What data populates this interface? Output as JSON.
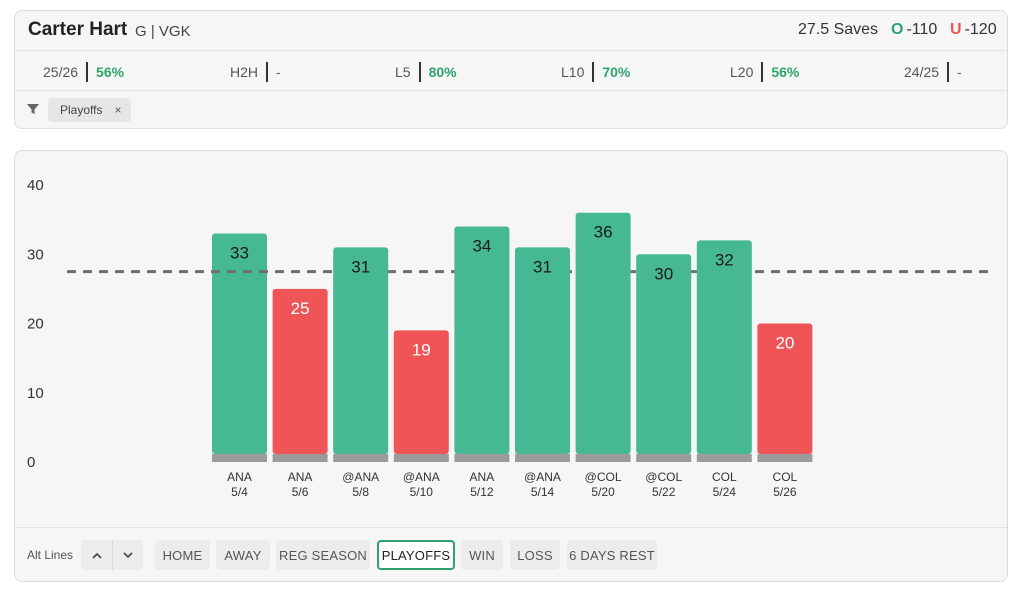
{
  "player": {
    "name": "Carter Hart",
    "meta": "G | VGK"
  },
  "prop": {
    "line_text": "27.5 Saves",
    "over_mark": "O",
    "over_odds": "-110",
    "under_mark": "U",
    "under_odds": "-120"
  },
  "splits": [
    {
      "label": "25/26",
      "value": "56%",
      "positive": true
    },
    {
      "label": "H2H",
      "value": "-",
      "positive": false
    },
    {
      "label": "L5",
      "value": "80%",
      "positive": true
    },
    {
      "label": "L10",
      "value": "70%",
      "positive": true
    },
    {
      "label": "L20",
      "value": "56%",
      "positive": true
    },
    {
      "label": "24/25",
      "value": "-",
      "positive": false
    }
  ],
  "filter_chip": {
    "label": "Playoffs",
    "close": "×"
  },
  "colors": {
    "over": "#46b994",
    "under": "#ef5456",
    "accent": "#2ea36e",
    "base": "#9b9b9b"
  },
  "chart_data": {
    "type": "bar",
    "categories": [
      "ANA 5/4",
      "ANA 5/6",
      "@ANA 5/8",
      "@ANA 5/10",
      "ANA 5/12",
      "@ANA 5/14",
      "@COL 5/20",
      "@COL 5/22",
      "COL 5/24",
      "COL 5/26"
    ],
    "opponents": [
      "ANA",
      "ANA",
      "@ANA",
      "@ANA",
      "ANA",
      "@ANA",
      "@COL",
      "@COL",
      "COL",
      "COL"
    ],
    "dates": [
      "5/4",
      "5/6",
      "5/8",
      "5/10",
      "5/12",
      "5/14",
      "5/20",
      "5/22",
      "5/24",
      "5/26"
    ],
    "values": [
      33,
      25,
      31,
      19,
      34,
      31,
      36,
      30,
      32,
      20
    ],
    "threshold": 27.5,
    "ylim": [
      0,
      40
    ],
    "yticks": [
      "0",
      "10",
      "20",
      "30",
      "40"
    ],
    "grid": false
  },
  "toolbar": {
    "alt_lines_label": "Alt Lines",
    "up_icon": "^",
    "down_icon": "⌄",
    "filters": [
      {
        "label": "HOME",
        "active": false
      },
      {
        "label": "AWAY",
        "active": false
      },
      {
        "label": "REG SEASON",
        "active": false
      },
      {
        "label": "PLAYOFFS",
        "active": true
      },
      {
        "label": "WIN",
        "active": false
      },
      {
        "label": "LOSS",
        "active": false
      },
      {
        "label": "6 DAYS REST",
        "active": false
      }
    ]
  }
}
